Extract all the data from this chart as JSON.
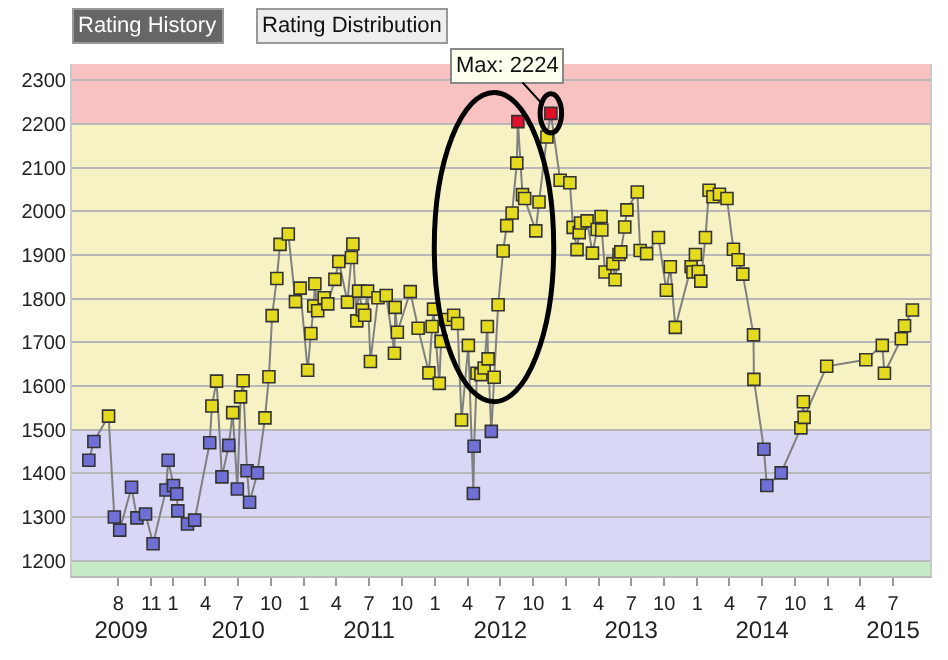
{
  "chart_data": {
    "type": "line",
    "marker": "square",
    "line_style": "solid",
    "grid": "y",
    "annotations": [
      "Rating History",
      "Rating Distribution",
      {
        "text": "Max: 2224",
        "x": "2012-11-19",
        "y": 2224
      }
    ],
    "xlim": [
      "2009-03-25",
      "2015-10-12"
    ],
    "ylim": [
      1165,
      2337
    ],
    "yticks": [
      1200,
      1300,
      1400,
      1500,
      1600,
      1700,
      1800,
      1900,
      2000,
      2100,
      2200,
      2300
    ],
    "xticks": [
      {
        "value": "2009-08-01",
        "label": "8"
      },
      {
        "value": "2009-11-01",
        "label": "11"
      },
      {
        "value": "2010-01-01",
        "label": "1"
      },
      {
        "value": "2010-04-01",
        "label": "4"
      },
      {
        "value": "2010-07-01",
        "label": "7"
      },
      {
        "value": "2010-10-01",
        "label": "10"
      },
      {
        "value": "2011-01-01",
        "label": "1"
      },
      {
        "value": "2011-04-01",
        "label": "4"
      },
      {
        "value": "2011-07-01",
        "label": "7"
      },
      {
        "value": "2011-10-01",
        "label": "10"
      },
      {
        "value": "2012-01-01",
        "label": "1"
      },
      {
        "value": "2012-04-01",
        "label": "4"
      },
      {
        "value": "2012-07-01",
        "label": "7"
      },
      {
        "value": "2012-10-01",
        "label": "10"
      },
      {
        "value": "2013-01-01",
        "label": "1"
      },
      {
        "value": "2013-04-01",
        "label": "4"
      },
      {
        "value": "2013-07-01",
        "label": "7"
      },
      {
        "value": "2013-10-01",
        "label": "10"
      },
      {
        "value": "2014-01-01",
        "label": "1"
      },
      {
        "value": "2014-04-01",
        "label": "4"
      },
      {
        "value": "2014-07-01",
        "label": "7"
      },
      {
        "value": "2014-10-01",
        "label": "10"
      },
      {
        "value": "2015-01-01",
        "label": "1"
      },
      {
        "value": "2015-04-01",
        "label": "4"
      },
      {
        "value": "2015-07-01",
        "label": "7"
      }
    ],
    "x2lim": [
      "2009-03-25",
      "2015-10-12"
    ],
    "x2ticks": [
      {
        "value": "2009-08-09",
        "label": "2009"
      },
      {
        "value": "2010-07-01",
        "label": "2010"
      },
      {
        "value": "2011-07-01",
        "label": "2011"
      },
      {
        "value": "2012-07-01",
        "label": "2012"
      },
      {
        "value": "2013-07-01",
        "label": "2013"
      },
      {
        "value": "2014-07-01",
        "label": "2014"
      },
      {
        "value": "2015-07-01",
        "label": "2015"
      }
    ],
    "bands": [
      {
        "axis": "y",
        "from": 2200,
        "to": 2337,
        "color": "#f8c2c2"
      },
      {
        "axis": "y",
        "from": 1500,
        "to": 2200,
        "color": "#f6f2c4"
      },
      {
        "axis": "y",
        "from": 1200,
        "to": 1500,
        "color": "#d8d8f6"
      },
      {
        "axis": "y",
        "from": 1165,
        "to": 1200,
        "color": "#c6eac6"
      }
    ],
    "series": [
      {
        "color": "#808080",
        "x": [
          "2009-05-11",
          "2009-05-25",
          "2009-07-05",
          "2009-07-21",
          "2009-08-05",
          "2009-09-07",
          "2009-09-22",
          "2009-10-16",
          "2009-11-06",
          "2009-12-12",
          "2009-12-18",
          "2010-01-02",
          "2010-01-11",
          "2010-01-14",
          "2010-02-10",
          "2010-03-02",
          "2010-04-13",
          "2010-04-19",
          "2010-05-02",
          "2010-05-17",
          "2010-06-05",
          "2010-06-16",
          "2010-06-29",
          "2010-07-08",
          "2010-07-15",
          "2010-07-26",
          "2010-08-02",
          "2010-08-24",
          "2010-09-14",
          "2010-09-25",
          "2010-10-04",
          "2010-10-17",
          "2010-10-26",
          "2010-11-18",
          "2010-12-08",
          "2010-12-21",
          "2011-01-11",
          "2011-01-20",
          "2011-01-28",
          "2011-01-31",
          "2011-02-08",
          "2011-02-26",
          "2011-03-08",
          "2011-03-28",
          "2011-04-08",
          "2011-05-02",
          "2011-05-13",
          "2011-05-17",
          "2011-05-28",
          "2011-06-02",
          "2011-06-13",
          "2011-06-19",
          "2011-06-27",
          "2011-07-05",
          "2011-07-26",
          "2011-08-18",
          "2011-09-10",
          "2011-09-12",
          "2011-09-18",
          "2011-10-24",
          "2011-11-15",
          "2011-12-15",
          "2011-12-24",
          "2011-12-28",
          "2012-01-13",
          "2012-01-18",
          "2012-01-31",
          "2012-02-22",
          "2012-03-04",
          "2012-03-15",
          "2012-04-03",
          "2012-04-17",
          "2012-04-19",
          "2012-04-27",
          "2012-05-08",
          "2012-05-17",
          "2012-05-26",
          "2012-05-28",
          "2012-06-06",
          "2012-06-14",
          "2012-06-25",
          "2012-07-09",
          "2012-07-19",
          "2012-08-03",
          "2012-08-16",
          "2012-08-19",
          "2012-09-01",
          "2012-09-07",
          "2012-10-08",
          "2012-10-17",
          "2012-11-08",
          "2012-11-19",
          "2012-12-15",
          "2013-01-11",
          "2013-01-20",
          "2013-01-31",
          "2013-02-06",
          "2013-02-10",
          "2013-02-28",
          "2013-03-15",
          "2013-03-28",
          "2013-04-08",
          "2013-04-10",
          "2013-04-19",
          "2013-05-11",
          "2013-05-17",
          "2013-05-28",
          "2013-06-02",
          "2013-06-13",
          "2013-06-19",
          "2013-07-18",
          "2013-07-26",
          "2013-08-13",
          "2013-09-15",
          "2013-10-07",
          "2013-10-18",
          "2013-11-01",
          "2013-12-15",
          "2013-12-20",
          "2013-12-27",
          "2014-01-04",
          "2014-01-11",
          "2014-01-24",
          "2014-02-03",
          "2014-02-14",
          "2014-03-04",
          "2014-03-25",
          "2014-04-12",
          "2014-04-25",
          "2014-05-08",
          "2014-06-07",
          "2014-06-08",
          "2014-07-06",
          "2014-07-14",
          "2014-08-23",
          "2014-10-17",
          "2014-10-24",
          "2014-10-26",
          "2014-12-28",
          "2015-04-16",
          "2015-06-01",
          "2015-06-07",
          "2015-07-24",
          "2015-08-02",
          "2015-08-24"
        ],
        "values": [
          1430,
          1473,
          1531,
          1300,
          1270,
          1368,
          1298,
          1307,
          1239,
          1362,
          1430,
          1372,
          1353,
          1314,
          1284,
          1293,
          1470,
          1554,
          1611,
          1392,
          1464,
          1539,
          1364,
          1575,
          1612,
          1406,
          1334,
          1401,
          1527,
          1621,
          1761,
          1846,
          1924,
          1948,
          1793,
          1824,
          1636,
          1720,
          1783,
          1834,
          1772,
          1802,
          1788,
          1844,
          1885,
          1792,
          1894,
          1925,
          1749,
          1817,
          1774,
          1762,
          1817,
          1656,
          1802,
          1807,
          1675,
          1780,
          1723,
          1816,
          1732,
          1630,
          1736,
          1776,
          1606,
          1702,
          1752,
          1762,
          1743,
          1522,
          1693,
          1354,
          1462,
          1629,
          1626,
          1641,
          1736,
          1662,
          1496,
          1620,
          1786,
          1909,
          1967,
          1996,
          2110,
          2205,
          2038,
          2029,
          1955,
          2021,
          2170,
          2224,
          2071,
          2065,
          1963,
          1912,
          1951,
          1973,
          1978,
          1904,
          1958,
          1988,
          1957,
          1861,
          1880,
          1843,
          1901,
          1907,
          1964,
          2003,
          2044,
          1910,
          1903,
          1940,
          1819,
          1873,
          1734,
          1873,
          1861,
          1901,
          1862,
          1840,
          1940,
          2048,
          2033,
          2039,
          2029,
          1913,
          1889,
          1856,
          1717,
          1615,
          1455,
          1372,
          1401,
          1504,
          1564,
          1528,
          1645,
          1660,
          1693,
          1629,
          1708,
          1738,
          1774
        ],
        "colors": [
          "#6f6fd6",
          "#6f6fd6",
          "#e4da1e",
          "#6f6fd6",
          "#6f6fd6",
          "#6f6fd6",
          "#6f6fd6",
          "#6f6fd6",
          "#6f6fd6",
          "#6f6fd6",
          "#6f6fd6",
          "#6f6fd6",
          "#6f6fd6",
          "#6f6fd6",
          "#6f6fd6",
          "#6f6fd6",
          "#6f6fd6",
          "#e4da1e",
          "#e4da1e",
          "#6f6fd6",
          "#6f6fd6",
          "#e4da1e",
          "#6f6fd6",
          "#e4da1e",
          "#e4da1e",
          "#6f6fd6",
          "#6f6fd6",
          "#6f6fd6",
          "#e4da1e",
          "#e4da1e",
          "#e4da1e",
          "#e4da1e",
          "#e4da1e",
          "#e4da1e",
          "#e4da1e",
          "#e4da1e",
          "#e4da1e",
          "#e4da1e",
          "#e4da1e",
          "#e4da1e",
          "#e4da1e",
          "#e4da1e",
          "#e4da1e",
          "#e4da1e",
          "#e4da1e",
          "#e4da1e",
          "#e4da1e",
          "#e4da1e",
          "#e4da1e",
          "#e4da1e",
          "#e4da1e",
          "#e4da1e",
          "#e4da1e",
          "#e4da1e",
          "#e4da1e",
          "#e4da1e",
          "#e4da1e",
          "#e4da1e",
          "#e4da1e",
          "#e4da1e",
          "#e4da1e",
          "#e4da1e",
          "#e4da1e",
          "#e4da1e",
          "#e4da1e",
          "#e4da1e",
          "#e4da1e",
          "#e4da1e",
          "#e4da1e",
          "#e4da1e",
          "#e4da1e",
          "#6f6fd6",
          "#6f6fd6",
          "#e4da1e",
          "#e4da1e",
          "#e4da1e",
          "#e4da1e",
          "#e4da1e",
          "#6f6fd6",
          "#e4da1e",
          "#e4da1e",
          "#e4da1e",
          "#e4da1e",
          "#e4da1e",
          "#e4da1e",
          "#e0102c",
          "#e4da1e",
          "#e4da1e",
          "#e4da1e",
          "#e4da1e",
          "#e4da1e",
          "#e0102c",
          "#e4da1e",
          "#e4da1e",
          "#e4da1e",
          "#e4da1e",
          "#e4da1e",
          "#e4da1e",
          "#e4da1e",
          "#e4da1e",
          "#e4da1e",
          "#e4da1e",
          "#e4da1e",
          "#e4da1e",
          "#e4da1e",
          "#e4da1e",
          "#e4da1e",
          "#e4da1e",
          "#e4da1e",
          "#e4da1e",
          "#e4da1e",
          "#e4da1e",
          "#e4da1e",
          "#e4da1e",
          "#e4da1e",
          "#e4da1e",
          "#e4da1e",
          "#e4da1e",
          "#e4da1e",
          "#e4da1e",
          "#e4da1e",
          "#e4da1e",
          "#e4da1e",
          "#e4da1e",
          "#e4da1e",
          "#e4da1e",
          "#e4da1e",
          "#e4da1e",
          "#e4da1e",
          "#e4da1e",
          "#e4da1e",
          "#e4da1e",
          "#6f6fd6",
          "#6f6fd6",
          "#6f6fd6",
          "#e4da1e",
          "#e4da1e",
          "#e4da1e",
          "#e4da1e",
          "#e4da1e",
          "#e4da1e",
          "#e4da1e",
          "#e4da1e",
          "#e4da1e",
          "#e4da1e"
        ]
      }
    ]
  }
}
